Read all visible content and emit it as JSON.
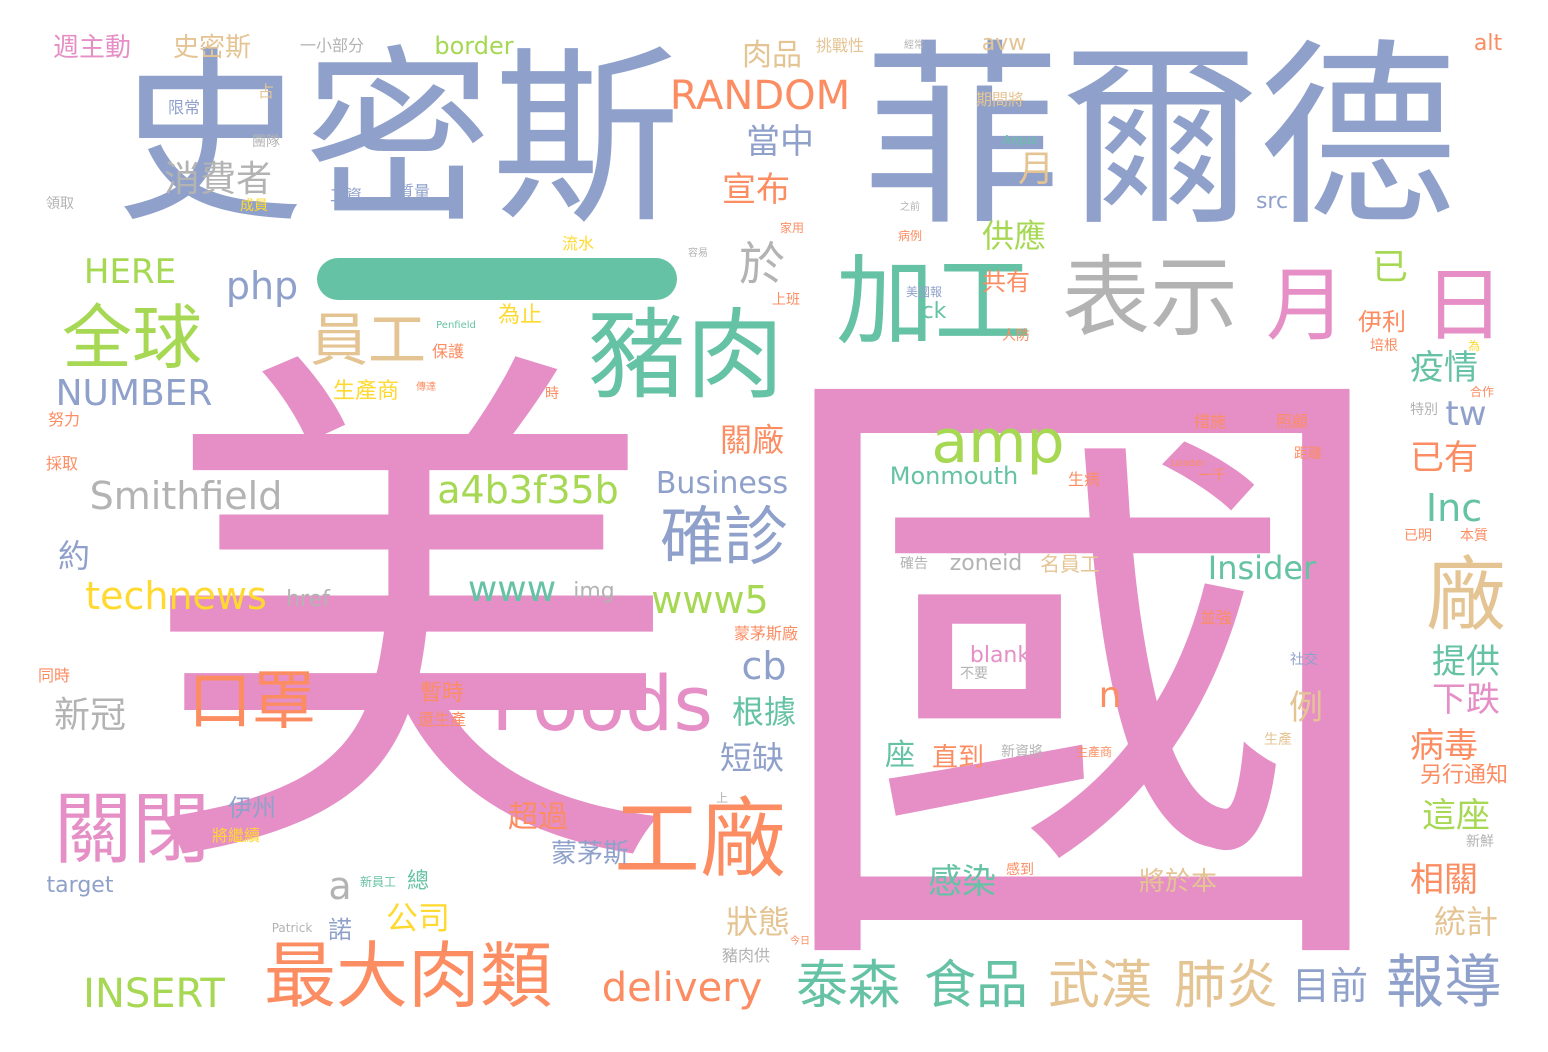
{
  "words": [
    {
      "id": "guo",
      "text": "國"
    },
    {
      "id": "mei",
      "text": "美"
    },
    {
      "id": "feierde",
      "text": "菲爾德"
    },
    {
      "id": "shimisi",
      "text": "史密斯"
    },
    {
      "id": "zhurou",
      "text": "豬肉"
    },
    {
      "id": "jiagong",
      "text": "加工"
    },
    {
      "id": "biaoshi",
      "text": "表示"
    },
    {
      "id": "gongchang",
      "text": "工廠"
    },
    {
      "id": "foods",
      "text": "Foods"
    },
    {
      "id": "zuidaroulei",
      "text": "最大肉類"
    },
    {
      "id": "guanbi",
      "text": "關閉"
    },
    {
      "id": "kouzhao",
      "text": "口罩"
    },
    {
      "id": "quanqiu",
      "text": "全球"
    },
    {
      "id": "yuangong",
      "text": "員工"
    },
    {
      "id": "amp",
      "text": "amp"
    },
    {
      "id": "quezhen",
      "text": "確診"
    },
    {
      "id": "chang",
      "text": "廠"
    },
    {
      "id": "yue",
      "text": "月"
    },
    {
      "id": "ri",
      "text": "日"
    },
    {
      "id": "taisen",
      "text": "泰森"
    },
    {
      "id": "shipin",
      "text": "食品"
    },
    {
      "id": "wuhan",
      "text": "武漢"
    },
    {
      "id": "feiyan",
      "text": "肺炎"
    },
    {
      "id": "baodao",
      "text": "報導"
    },
    {
      "id": "smithfield",
      "text": "Smithfield"
    },
    {
      "id": "a4b3",
      "text": "a4b3f35b"
    },
    {
      "id": "technews",
      "text": "technews"
    },
    {
      "id": "www5",
      "text": "www5"
    },
    {
      "id": "www",
      "text": "www"
    },
    {
      "id": "delivery",
      "text": "delivery"
    },
    {
      "id": "insert",
      "text": "INSERT"
    },
    {
      "id": "random",
      "text": "RANDOM"
    },
    {
      "id": "number",
      "text": "NUMBER"
    },
    {
      "id": "here",
      "text": "HERE"
    },
    {
      "id": "php",
      "text": "php"
    },
    {
      "id": "business",
      "text": "Business"
    },
    {
      "id": "insider",
      "text": "Insider"
    },
    {
      "id": "monmouth",
      "text": "Monmouth"
    },
    {
      "id": "inc",
      "text": "Inc"
    },
    {
      "id": "tw",
      "text": "tw"
    },
    {
      "id": "cb",
      "text": "cb"
    },
    {
      "id": "n",
      "text": "n"
    },
    {
      "id": "a",
      "text": "a"
    },
    {
      "id": "yu",
      "text": "於"
    },
    {
      "id": "xiaofeizhe",
      "text": "消費者"
    },
    {
      "id": "shimisi2",
      "text": "史密斯"
    },
    {
      "id": "zhouzhudong",
      "text": "週主動"
    },
    {
      "id": "border",
      "text": "border"
    },
    {
      "id": "roupin",
      "text": "肉品"
    },
    {
      "id": "dangzhong",
      "text": "當中"
    },
    {
      "id": "xuanbu",
      "text": "宣布"
    },
    {
      "id": "gongying",
      "text": "供應"
    },
    {
      "id": "yue2",
      "text": "月"
    },
    {
      "id": "yi",
      "text": "已"
    },
    {
      "id": "gongyou",
      "text": "共有"
    },
    {
      "id": "yili",
      "text": "伊利"
    },
    {
      "id": "yiqing",
      "text": "疫情"
    },
    {
      "id": "guanchang",
      "text": "關廠"
    },
    {
      "id": "yiyou",
      "text": "已有"
    },
    {
      "id": "xinguan",
      "text": "新冠"
    },
    {
      "id": "yue3",
      "text": "約"
    },
    {
      "id": "genju",
      "text": "根據"
    },
    {
      "id": "duanque",
      "text": "短缺"
    },
    {
      "id": "tigong",
      "text": "提供"
    },
    {
      "id": "xiadie",
      "text": "下跌"
    },
    {
      "id": "bingdu",
      "text": "病毒"
    },
    {
      "id": "lingxing",
      "text": "另行通知"
    },
    {
      "id": "zhezuo",
      "text": "這座"
    },
    {
      "id": "xiangguan",
      "text": "相關"
    },
    {
      "id": "tongji",
      "text": "統計"
    },
    {
      "id": "mumeng",
      "text": "蒙茅斯"
    },
    {
      "id": "chaoguo",
      "text": "超過"
    },
    {
      "id": "ganran",
      "text": "感染"
    },
    {
      "id": "jiangyu",
      "text": "將於本"
    },
    {
      "id": "zhuangtai",
      "text": "狀態"
    },
    {
      "id": "gongsi",
      "text": "公司"
    },
    {
      "id": "zhidao",
      "text": "直到"
    },
    {
      "id": "zuo",
      "text": "座"
    },
    {
      "id": "muqian",
      "text": "目前"
    },
    {
      "id": "zhanshi",
      "text": "暫時"
    },
    {
      "id": "li",
      "text": "例"
    },
    {
      "id": "yizhou",
      "text": "伊州"
    },
    {
      "id": "shengchanshang",
      "text": "生產商"
    },
    {
      "id": "weizhi",
      "text": "為止"
    },
    {
      "id": "ck",
      "text": "ck"
    },
    {
      "id": "src",
      "text": "src"
    },
    {
      "id": "alt",
      "text": "alt"
    },
    {
      "id": "avw",
      "text": "avw"
    },
    {
      "id": "blank",
      "text": "blank"
    },
    {
      "id": "zoneid",
      "text": "zoneid"
    },
    {
      "id": "mingyuangong",
      "text": "名員工"
    },
    {
      "id": "img",
      "text": "img"
    },
    {
      "id": "href",
      "text": "href"
    },
    {
      "id": "target",
      "text": "target"
    },
    {
      "id": "nuo",
      "text": "諾"
    },
    {
      "id": "zong",
      "text": "總"
    },
    {
      "id": "yixiaobufen",
      "text": "一小部分"
    },
    {
      "id": "tiaozhan",
      "text": "挑戰性"
    },
    {
      "id": "xiaxian",
      "text": "限常"
    },
    {
      "id": "zhan",
      "text": "占"
    },
    {
      "id": "tuandui",
      "text": "團隊"
    },
    {
      "id": "qijian",
      "text": "期間將"
    },
    {
      "id": "gongzi",
      "text": "工資"
    },
    {
      "id": "shuliang",
      "text": "質量"
    },
    {
      "id": "chengyuan",
      "text": "成員"
    },
    {
      "id": "lingqu",
      "text": "領取"
    },
    {
      "id": "liushui",
      "text": "流水"
    },
    {
      "id": "baohu",
      "text": "保護"
    },
    {
      "id": "nuli",
      "text": "努力"
    },
    {
      "id": "caiqu",
      "text": "採取"
    },
    {
      "id": "tongshi",
      "text": "同時"
    },
    {
      "id": "huanshengchan",
      "text": "還生產"
    },
    {
      "id": "jiangjixu",
      "text": "將繼續"
    },
    {
      "id": "cuoshi",
      "text": "措施"
    },
    {
      "id": "zhaogu",
      "text": "照顧"
    },
    {
      "id": "juli",
      "text": "距離"
    },
    {
      "id": "shengbing",
      "text": "生病"
    },
    {
      "id": "yiqian",
      "text": "一千"
    },
    {
      "id": "tebie",
      "text": "特別"
    },
    {
      "id": "bingzhe",
      "text": "並強"
    },
    {
      "id": "shejiao",
      "text": "社交"
    },
    {
      "id": "shengchan",
      "text": "生產"
    },
    {
      "id": "xinxian",
      "text": "新鮮"
    },
    {
      "id": "benzhi",
      "text": "本質"
    },
    {
      "id": "yiming",
      "text": "已明"
    },
    {
      "id": "zhurougong",
      "text": "豬肉供"
    },
    {
      "id": "shang",
      "text": "上"
    },
    {
      "id": "shangban",
      "text": "上班"
    },
    {
      "id": "renfang",
      "text": "人防"
    },
    {
      "id": "penfield",
      "text": "Penfield"
    },
    {
      "id": "argus",
      "text": "Argus"
    },
    {
      "id": "leader",
      "text": "Leader"
    },
    {
      "id": "patrick",
      "text": "Patrick"
    },
    {
      "id": "xinzijiang",
      "text": "新資將"
    },
    {
      "id": "meiguobao",
      "text": "美國報"
    },
    {
      "id": "shengchan2",
      "text": "生產商"
    },
    {
      "id": "wei",
      "text": "為"
    },
    {
      "id": "peigen",
      "text": "培根"
    },
    {
      "id": "hezuo",
      "text": "合作"
    },
    {
      "id": "jiayong",
      "text": "家用"
    },
    {
      "id": "bingli",
      "text": "病例"
    },
    {
      "id": "ganyuan",
      "text": "感到"
    },
    {
      "id": "jinggao",
      "text": "確告"
    },
    {
      "id": "mengmaosichang",
      "text": "蒙茅斯廠"
    },
    {
      "id": "da",
      "text": "大"
    },
    {
      "id": "bushou",
      "text": "不要"
    },
    {
      "id": "chuanda",
      "text": "傳達"
    },
    {
      "id": "shi",
      "text": "時"
    },
    {
      "id": "jingchang",
      "text": "經常"
    },
    {
      "id": "rongyi",
      "text": "容易"
    },
    {
      "id": "zhiqian",
      "text": "之前"
    },
    {
      "id": "xinyuangong",
      "text": "新員工"
    },
    {
      "id": "jinri",
      "text": "今日"
    }
  ]
}
